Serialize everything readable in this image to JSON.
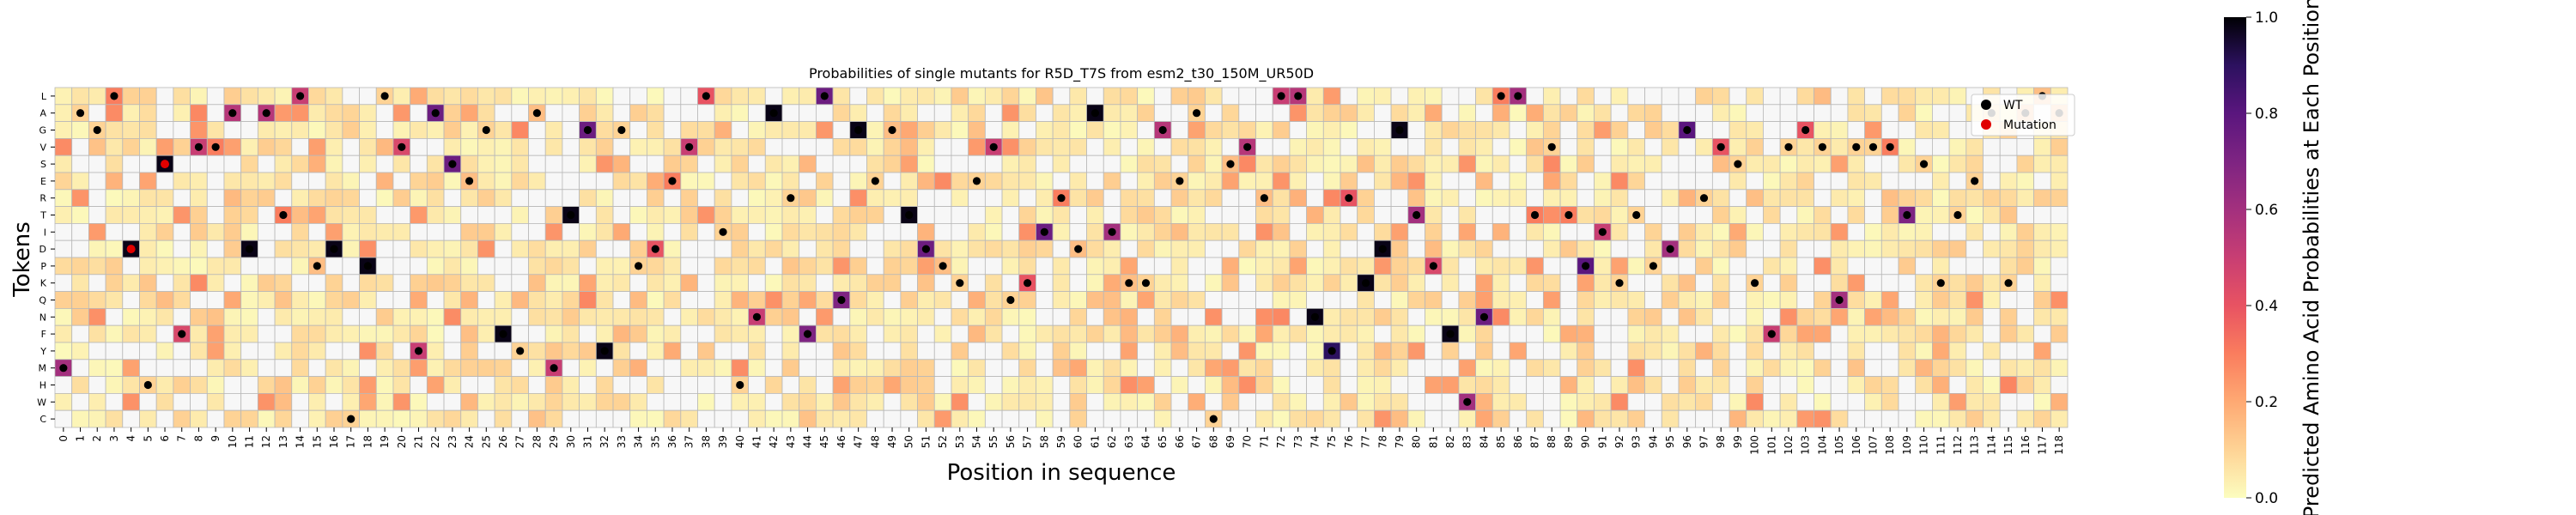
{
  "chart_data": {
    "type": "heatmap",
    "title": "Probabilities of single mutants for R5D_T7S from esm2_t30_150M_UR50D",
    "xlabel": "Position in sequence",
    "ylabel": "Tokens",
    "tokens": [
      "L",
      "A",
      "G",
      "V",
      "S",
      "E",
      "R",
      "T",
      "I",
      "D",
      "P",
      "K",
      "Q",
      "N",
      "F",
      "Y",
      "M",
      "H",
      "W",
      "C"
    ],
    "x_range": [
      0,
      118
    ],
    "colorbar": {
      "label": "Predicted Amino Acid Probabilities at Each Position",
      "range": [
        0.0,
        1.0
      ],
      "ticks": [
        0.0,
        0.2,
        0.4,
        0.6,
        0.8,
        1.0
      ],
      "tick_labels": [
        "0.0",
        "0.2",
        "0.4",
        "0.6",
        "0.8",
        "1.0"
      ],
      "colormap": "magma_r"
    },
    "legend": {
      "placement": "top-right",
      "entries": [
        {
          "label": "WT",
          "color": "#000000"
        },
        {
          "label": "Mutation",
          "color": "#e00000"
        }
      ]
    },
    "wildtype_cells": [
      {
        "pos": 0,
        "token": "M",
        "value": 0.6
      },
      {
        "pos": 1,
        "token": "A",
        "value": 0.1
      },
      {
        "pos": 2,
        "token": "G",
        "value": 0.1
      },
      {
        "pos": 3,
        "token": "L",
        "value": 0.3
      },
      {
        "pos": 4,
        "token": "D",
        "value": 0.98
      },
      {
        "pos": 5,
        "token": "H",
        "value": 0.1
      },
      {
        "pos": 6,
        "token": "S",
        "value": 0.98
      },
      {
        "pos": 7,
        "token": "F",
        "value": 0.45
      },
      {
        "pos": 8,
        "token": "V",
        "value": 0.5
      },
      {
        "pos": 9,
        "token": "V",
        "value": 0.3
      },
      {
        "pos": 10,
        "token": "A",
        "value": 0.55
      },
      {
        "pos": 11,
        "token": "D",
        "value": 0.98
      },
      {
        "pos": 12,
        "token": "A",
        "value": 0.55
      },
      {
        "pos": 13,
        "token": "T",
        "value": 0.3
      },
      {
        "pos": 14,
        "token": "L",
        "value": 0.5
      },
      {
        "pos": 15,
        "token": "P",
        "value": 0.15
      },
      {
        "pos": 16,
        "token": "D",
        "value": 0.98
      },
      {
        "pos": 17,
        "token": "C",
        "value": 0.1
      },
      {
        "pos": 18,
        "token": "P",
        "value": 0.98
      },
      {
        "pos": 19,
        "token": "L",
        "value": 0.1
      },
      {
        "pos": 20,
        "token": "V",
        "value": 0.45
      },
      {
        "pos": 21,
        "token": "Y",
        "value": 0.5
      },
      {
        "pos": 22,
        "token": "A",
        "value": 0.75
      },
      {
        "pos": 23,
        "token": "S",
        "value": 0.75
      },
      {
        "pos": 24,
        "token": "E",
        "value": 0.15
      },
      {
        "pos": 25,
        "token": "G",
        "value": 0.1
      },
      {
        "pos": 26,
        "token": "F",
        "value": 0.98
      },
      {
        "pos": 27,
        "token": "Y",
        "value": 0.1
      },
      {
        "pos": 28,
        "token": "A",
        "value": 0.15
      },
      {
        "pos": 29,
        "token": "M",
        "value": 0.5
      },
      {
        "pos": 30,
        "token": "T",
        "value": 0.98
      },
      {
        "pos": 31,
        "token": "G",
        "value": 0.75
      },
      {
        "pos": 32,
        "token": "Y",
        "value": 0.98
      },
      {
        "pos": 33,
        "token": "G",
        "value": 0.1
      },
      {
        "pos": 34,
        "token": "P",
        "value": 0.1
      },
      {
        "pos": 35,
        "token": "D",
        "value": 0.4
      },
      {
        "pos": 36,
        "token": "E",
        "value": 0.3
      },
      {
        "pos": 37,
        "token": "V",
        "value": 0.5
      },
      {
        "pos": 38,
        "token": "L",
        "value": 0.4
      },
      {
        "pos": 39,
        "token": "I",
        "value": 0.1
      },
      {
        "pos": 40,
        "token": "H",
        "value": 0.1
      },
      {
        "pos": 41,
        "token": "N",
        "value": 0.5
      },
      {
        "pos": 42,
        "token": "A",
        "value": 0.98
      },
      {
        "pos": 43,
        "token": "R",
        "value": 0.1
      },
      {
        "pos": 44,
        "token": "F",
        "value": 0.7
      },
      {
        "pos": 45,
        "token": "L",
        "value": 0.75
      },
      {
        "pos": 46,
        "token": "Q",
        "value": 0.7
      },
      {
        "pos": 47,
        "token": "G",
        "value": 0.98
      },
      {
        "pos": 48,
        "token": "E",
        "value": 0.1
      },
      {
        "pos": 49,
        "token": "G",
        "value": 0.15
      },
      {
        "pos": 50,
        "token": "T",
        "value": 0.98
      },
      {
        "pos": 51,
        "token": "D",
        "value": 0.75
      },
      {
        "pos": 52,
        "token": "P",
        "value": 0.15
      },
      {
        "pos": 53,
        "token": "K",
        "value": 0.1
      },
      {
        "pos": 54,
        "token": "E",
        "value": 0.1
      },
      {
        "pos": 55,
        "token": "V",
        "value": 0.5
      },
      {
        "pos": 56,
        "token": "Q",
        "value": 0.1
      },
      {
        "pos": 57,
        "token": "K",
        "value": 0.4
      },
      {
        "pos": 58,
        "token": "I",
        "value": 0.75
      },
      {
        "pos": 59,
        "token": "R",
        "value": 0.3
      },
      {
        "pos": 60,
        "token": "D",
        "value": 0.15
      },
      {
        "pos": 61,
        "token": "A",
        "value": 0.98
      },
      {
        "pos": 62,
        "token": "I",
        "value": 0.6
      },
      {
        "pos": 63,
        "token": "K",
        "value": 0.15
      },
      {
        "pos": 64,
        "token": "K",
        "value": 0.1
      },
      {
        "pos": 65,
        "token": "G",
        "value": 0.55
      },
      {
        "pos": 66,
        "token": "E",
        "value": 0.1
      },
      {
        "pos": 67,
        "token": "A",
        "value": 0.1
      },
      {
        "pos": 68,
        "token": "C",
        "value": 0.1
      },
      {
        "pos": 69,
        "token": "S",
        "value": 0.15
      },
      {
        "pos": 70,
        "token": "V",
        "value": 0.55
      },
      {
        "pos": 71,
        "token": "R",
        "value": 0.15
      },
      {
        "pos": 72,
        "token": "L",
        "value": 0.5
      },
      {
        "pos": 73,
        "token": "L",
        "value": 0.55
      },
      {
        "pos": 74,
        "token": "N",
        "value": 0.98
      },
      {
        "pos": 75,
        "token": "Y",
        "value": 0.9
      },
      {
        "pos": 76,
        "token": "R",
        "value": 0.4
      },
      {
        "pos": 77,
        "token": "K",
        "value": 0.98
      },
      {
        "pos": 78,
        "token": "D",
        "value": 0.98
      },
      {
        "pos": 79,
        "token": "G",
        "value": 0.98
      },
      {
        "pos": 80,
        "token": "T",
        "value": 0.6
      },
      {
        "pos": 81,
        "token": "P",
        "value": 0.45
      },
      {
        "pos": 82,
        "token": "F",
        "value": 0.98
      },
      {
        "pos": 83,
        "token": "W",
        "value": 0.6
      },
      {
        "pos": 84,
        "token": "N",
        "value": 0.75
      },
      {
        "pos": 85,
        "token": "L",
        "value": 0.3
      },
      {
        "pos": 86,
        "token": "L",
        "value": 0.6
      },
      {
        "pos": 87,
        "token": "T",
        "value": 0.3
      },
      {
        "pos": 88,
        "token": "V",
        "value": 0.1
      },
      {
        "pos": 89,
        "token": "T",
        "value": 0.3
      },
      {
        "pos": 90,
        "token": "P",
        "value": 0.8
      },
      {
        "pos": 91,
        "token": "I",
        "value": 0.5
      },
      {
        "pos": 92,
        "token": "K",
        "value": 0.1
      },
      {
        "pos": 93,
        "token": "T",
        "value": 0.1
      },
      {
        "pos": 94,
        "token": "P",
        "value": 0.1
      },
      {
        "pos": 95,
        "token": "D",
        "value": 0.6
      },
      {
        "pos": 96,
        "token": "G",
        "value": 0.8
      },
      {
        "pos": 97,
        "token": "R",
        "value": 0.1
      },
      {
        "pos": 98,
        "token": "V",
        "value": 0.4
      },
      {
        "pos": 99,
        "token": "S",
        "value": 0.1
      },
      {
        "pos": 100,
        "token": "K",
        "value": 0.1
      },
      {
        "pos": 101,
        "token": "F",
        "value": 0.5
      },
      {
        "pos": 102,
        "token": "V",
        "value": 0.1
      },
      {
        "pos": 103,
        "token": "G",
        "value": 0.4
      },
      {
        "pos": 104,
        "token": "V",
        "value": 0.1
      },
      {
        "pos": 105,
        "token": "Q",
        "value": 0.6
      },
      {
        "pos": 106,
        "token": "V",
        "value": 0.1
      },
      {
        "pos": 107,
        "token": "V",
        "value": 0.1
      },
      {
        "pos": 108,
        "token": "V",
        "value": 0.3
      },
      {
        "pos": 109,
        "token": "T",
        "value": 0.7
      },
      {
        "pos": 110,
        "token": "S",
        "value": 0.1
      },
      {
        "pos": 111,
        "token": "K",
        "value": 0.1
      },
      {
        "pos": 112,
        "token": "T",
        "value": 0.1
      },
      {
        "pos": 113,
        "token": "E",
        "value": 0.1
      },
      {
        "pos": 114,
        "token": "A",
        "value": 0.1
      },
      {
        "pos": 115,
        "token": "K",
        "value": 0.1
      },
      {
        "pos": 116,
        "token": "A",
        "value": 0.15
      },
      {
        "pos": 117,
        "token": "L",
        "value": 0.15
      },
      {
        "pos": 118,
        "token": "A",
        "value": 0.15
      }
    ],
    "mutation_cells": [
      {
        "pos": 4,
        "token": "D"
      },
      {
        "pos": 6,
        "token": "S"
      }
    ]
  }
}
